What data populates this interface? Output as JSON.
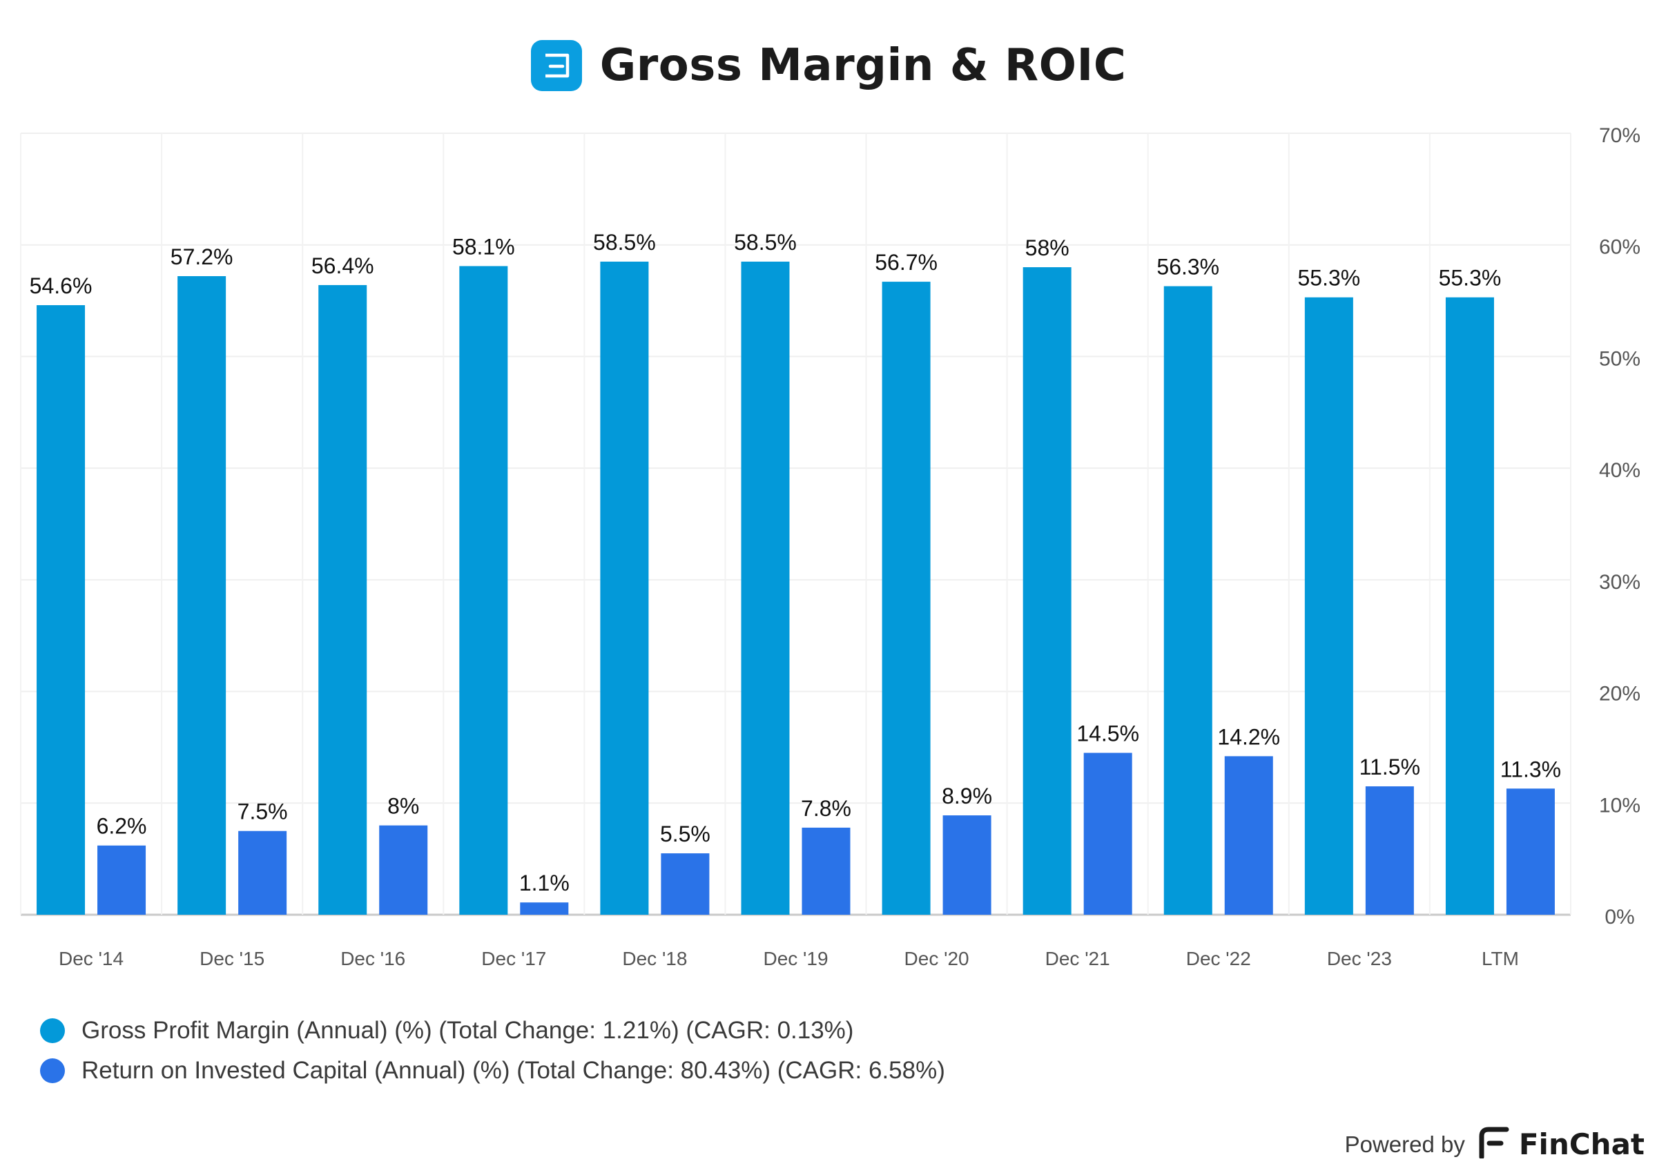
{
  "header": {
    "title": "Gross Margin & ROIC",
    "logo_icon": "company-logo-icon"
  },
  "chart_data": {
    "type": "bar",
    "title": "Gross Margin & ROIC",
    "categories": [
      "Dec '14",
      "Dec '15",
      "Dec '16",
      "Dec '17",
      "Dec '18",
      "Dec '19",
      "Dec '20",
      "Dec '21",
      "Dec '22",
      "Dec '23",
      "LTM"
    ],
    "series": [
      {
        "name": "Gross Profit Margin (Annual) (%) (Total Change: 1.21%) (CAGR: 0.13%)",
        "color": "#0399d9",
        "values": [
          54.6,
          57.2,
          56.4,
          58.1,
          58.5,
          58.5,
          56.7,
          58,
          56.3,
          55.3,
          55.3
        ],
        "labels": [
          "54.6%",
          "57.2%",
          "56.4%",
          "58.1%",
          "58.5%",
          "58.5%",
          "56.7%",
          "58%",
          "56.3%",
          "55.3%",
          "55.3%"
        ]
      },
      {
        "name": "Return on Invested Capital (Annual) (%) (Total Change: 80.43%) (CAGR: 6.58%)",
        "color": "#2a73e8",
        "values": [
          6.2,
          7.5,
          8,
          1.1,
          5.5,
          7.8,
          8.9,
          14.5,
          14.2,
          11.5,
          11.3
        ],
        "labels": [
          "6.2%",
          "7.5%",
          "8%",
          "1.1%",
          "5.5%",
          "7.8%",
          "8.9%",
          "14.5%",
          "14.2%",
          "11.5%",
          "11.3%"
        ]
      }
    ],
    "ylim": [
      0,
      70
    ],
    "yticks": [
      "0%",
      "10%",
      "20%",
      "30%",
      "40%",
      "50%",
      "60%",
      "70%"
    ],
    "y_axis_position": "right",
    "grid": true,
    "legend_position": "bottom-left",
    "xlabel": "",
    "ylabel": ""
  },
  "footer": {
    "powered_by": "Powered by",
    "brand": "FinChat"
  }
}
